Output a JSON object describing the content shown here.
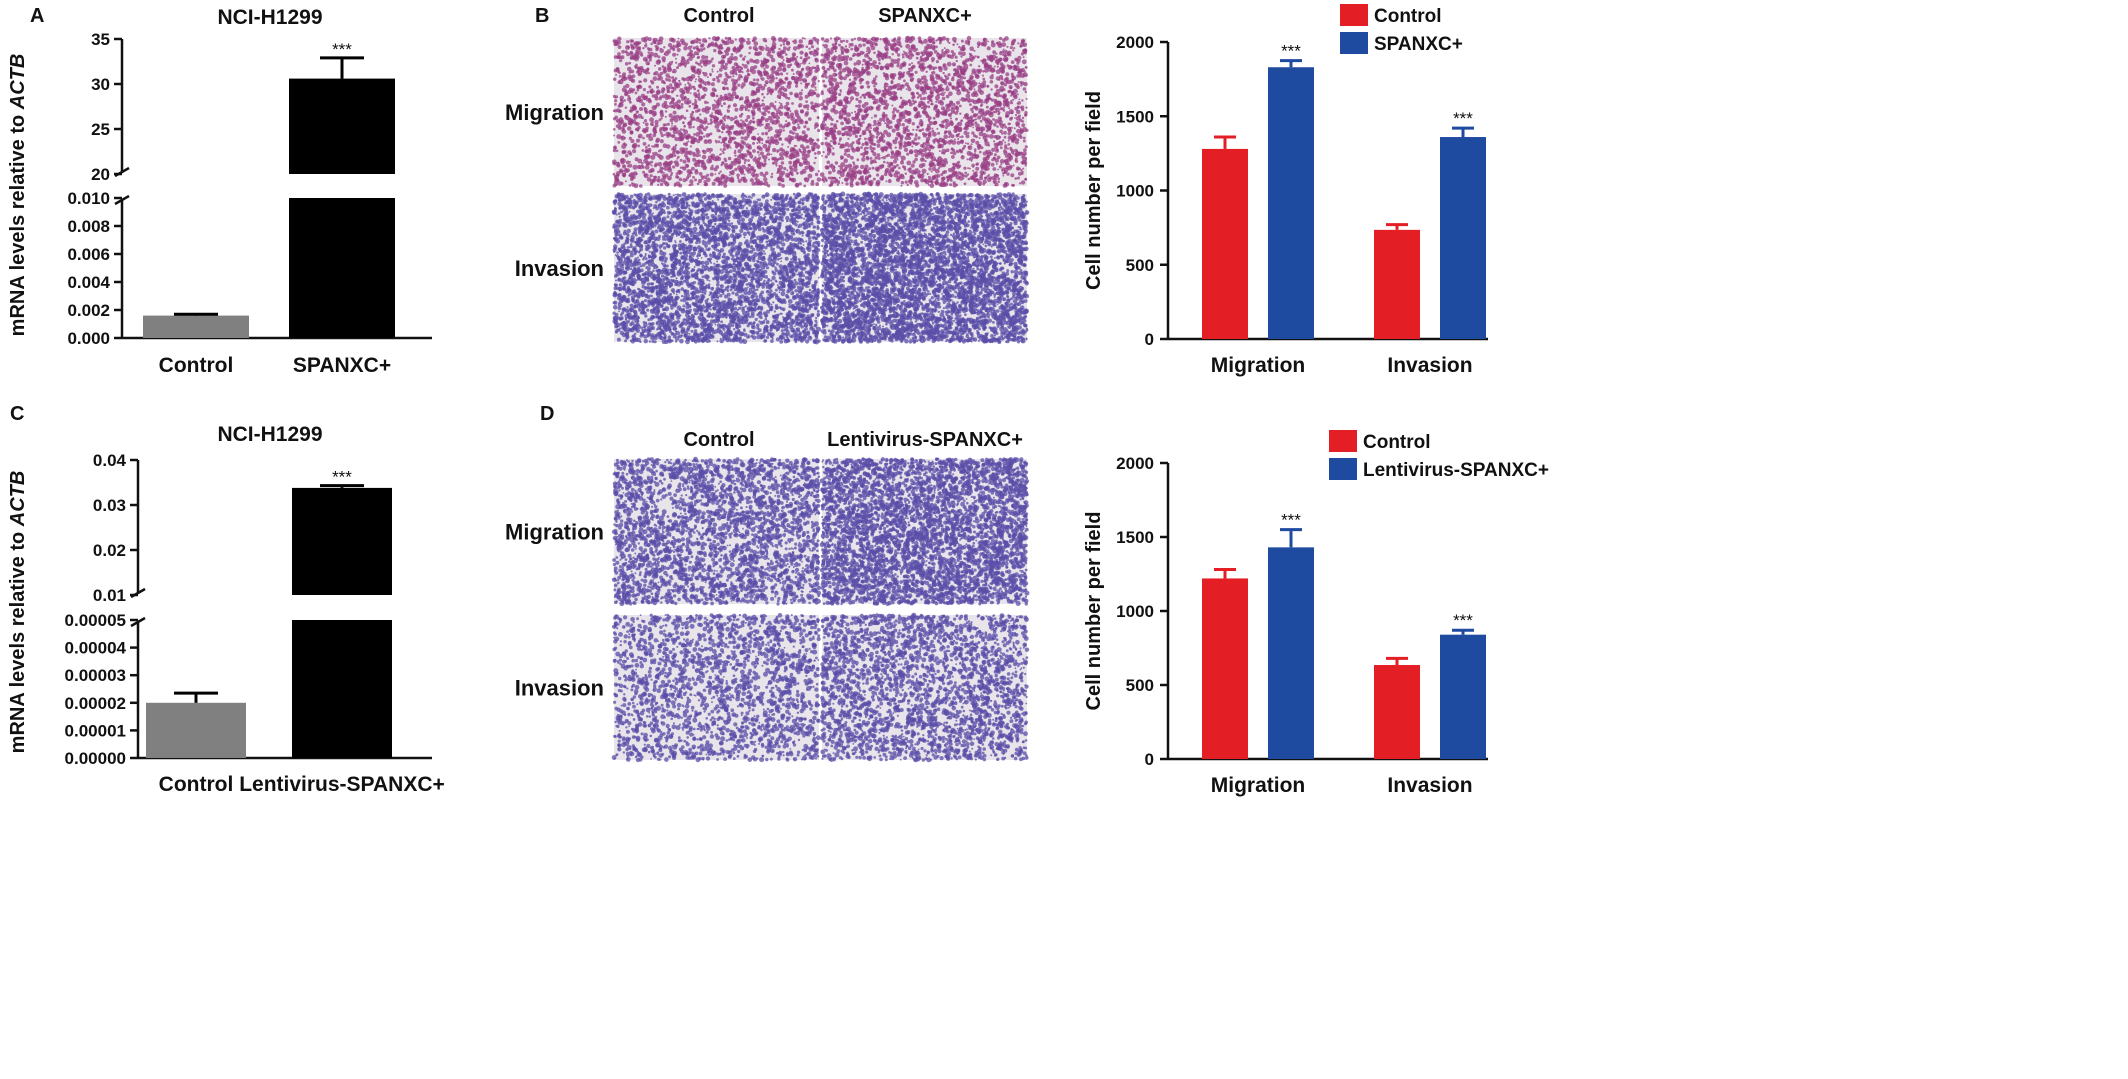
{
  "panels": {
    "A": {
      "label": "A",
      "title": "NCI-H1299",
      "ylabel_pre": "mRNA levels relative to ",
      "ylabel_gene": "ACTB"
    },
    "B": {
      "label": "B"
    },
    "C": {
      "label": "C",
      "title": "NCI-H1299",
      "ylabel_pre": "mRNA levels relative to ",
      "ylabel_gene": "ACTB"
    },
    "D": {
      "label": "D"
    }
  },
  "images": {
    "B": {
      "col_titles": [
        "Control",
        "SPANXC+"
      ],
      "row_labels": [
        "Migration",
        "Invasion"
      ]
    },
    "D": {
      "col_titles": [
        "Control",
        "Lentivirus-SPANXC+"
      ],
      "row_labels": [
        "Migration",
        "Invasion"
      ]
    }
  },
  "colors": {
    "control_gray": "#808080",
    "treated_black": "#000000",
    "control_red": "#e31e24",
    "treated_blue": "#1e4aa0",
    "migration_stain": "#9a3f86",
    "invasion_stain": "#5a4ea8",
    "field_bg": "#e8e4ea"
  },
  "chart_data": [
    {
      "id": "A",
      "type": "bar",
      "title": "NCI-H1299",
      "ylabel": "mRNA levels relative to ACTB",
      "categories": [
        "Control",
        "SPANXC+"
      ],
      "values": [
        0.0016,
        30.6
      ],
      "errors": [
        0.0001,
        2.3
      ],
      "significance": [
        "",
        "***"
      ],
      "axis_break": true,
      "lower_range": [
        0,
        0.01
      ],
      "lower_ticks": [
        "0.000",
        "0.002",
        "0.004",
        "0.006",
        "0.008",
        "0.010"
      ],
      "upper_range": [
        20,
        35
      ],
      "upper_ticks": [
        "20",
        "25",
        "30",
        "35"
      ]
    },
    {
      "id": "B",
      "type": "bar",
      "ylabel": "Cell number per field",
      "categories": [
        "Migration",
        "Invasion"
      ],
      "series": [
        {
          "name": "Control",
          "values": [
            1280,
            735
          ],
          "errors": [
            80,
            35
          ],
          "color": "#e31e24"
        },
        {
          "name": "SPANXC+",
          "values": [
            1830,
            1360
          ],
          "errors": [
            45,
            60
          ],
          "color": "#1e4aa0"
        }
      ],
      "significance": [
        "***",
        "***"
      ],
      "ylim": [
        0,
        2000
      ],
      "yticks": [
        "0",
        "500",
        "1000",
        "1500",
        "2000"
      ],
      "legend": "top-right"
    },
    {
      "id": "C",
      "type": "bar",
      "title": "NCI-H1299",
      "ylabel": "mRNA levels relative to ACTB",
      "categories": [
        "Control",
        "Lentivirus-SPANXC+"
      ],
      "values": [
        2e-05,
        0.0338
      ],
      "errors": [
        3.5e-06,
        0.0005
      ],
      "significance": [
        "",
        "***"
      ],
      "axis_break": true,
      "lower_range": [
        0,
        5e-05
      ],
      "lower_ticks": [
        "0.00000",
        "0.00001",
        "0.00002",
        "0.00003",
        "0.00004",
        "0.00005"
      ],
      "upper_range": [
        0.01,
        0.04
      ],
      "upper_ticks": [
        "0.01",
        "0.02",
        "0.03",
        "0.04"
      ]
    },
    {
      "id": "D",
      "type": "bar",
      "ylabel": "Cell number per field",
      "categories": [
        "Migration",
        "Invasion"
      ],
      "series": [
        {
          "name": "Control",
          "values": [
            1220,
            635
          ],
          "errors": [
            60,
            45
          ],
          "color": "#e31e24"
        },
        {
          "name": "Lentivirus-SPANXC+",
          "values": [
            1430,
            840
          ],
          "errors": [
            120,
            30
          ],
          "color": "#1e4aa0"
        }
      ],
      "significance": [
        "***",
        "***"
      ],
      "ylim": [
        0,
        2000
      ],
      "yticks": [
        "0",
        "500",
        "1000",
        "1500",
        "2000"
      ],
      "legend": "top-right"
    }
  ]
}
